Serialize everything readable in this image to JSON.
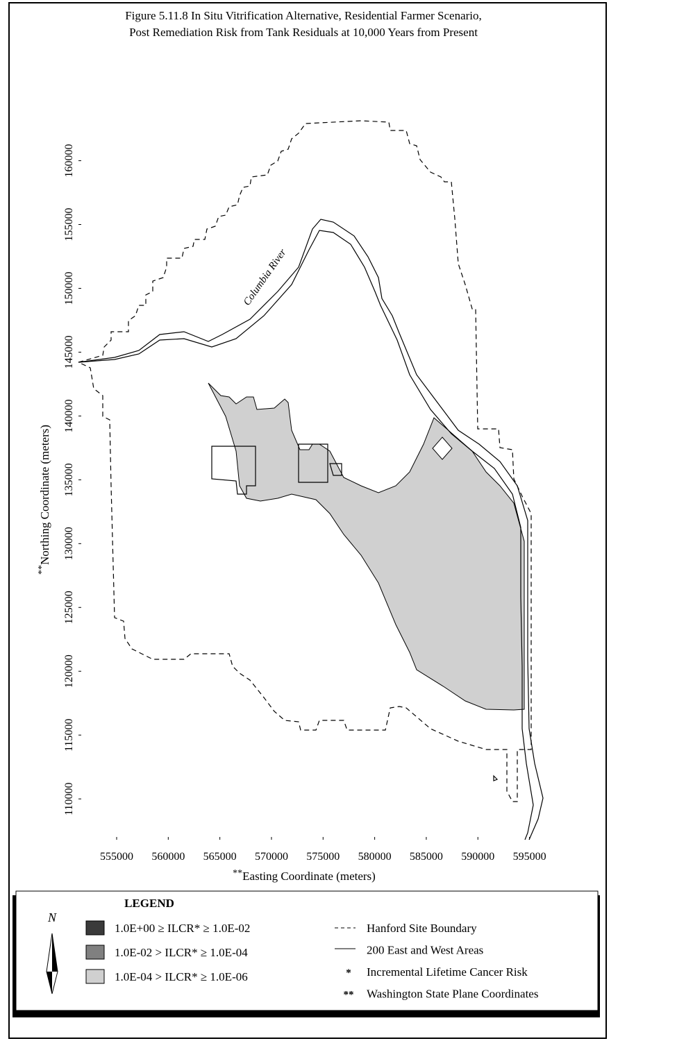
{
  "title": [
    "Figure 5.11.8  In Situ Vitrification Alternative, Residential Farmer Scenario,",
    "Post Remediation Risk from Tank Residuals at 10,000 Years from Present"
  ],
  "map": {
    "annotation": "Columbia River",
    "x_axis": {
      "marker": "**",
      "label": "Easting Coordinate (meters)",
      "lim": [
        551300,
        595500
      ],
      "ticks": [
        555000,
        560000,
        565000,
        570000,
        575000,
        580000,
        585000,
        590000,
        595000
      ]
    },
    "y_axis": {
      "marker": "**",
      "label": "Northing Coordinate (meters)",
      "lim": [
        106800,
        160900
      ],
      "ticks": [
        110000,
        115000,
        120000,
        125000,
        130000,
        135000,
        140000,
        145000,
        150000,
        155000,
        160000
      ]
    }
  },
  "legend": {
    "title": "LEGEND",
    "north": "N",
    "risk_classes": [
      {
        "label": "1.0E+00 ≥ ILCR* ≥ 1.0E-02",
        "color": "#3a3a3a"
      },
      {
        "label": "1.0E-02 > ILCR* ≥ 1.0E-04",
        "color": "#808080"
      },
      {
        "label": "1.0E-04 > ILCR* ≥ 1.0E-06",
        "color": "#d0d0d0"
      }
    ],
    "keys": [
      {
        "label": "Hanford Site Boundary"
      },
      {
        "label": "200 East and West Areas"
      },
      {
        "symbol": "*",
        "label": "Incremental Lifetime Cancer Risk"
      },
      {
        "symbol": "**",
        "label": "Washington State Plane Coordinates"
      }
    ]
  }
}
